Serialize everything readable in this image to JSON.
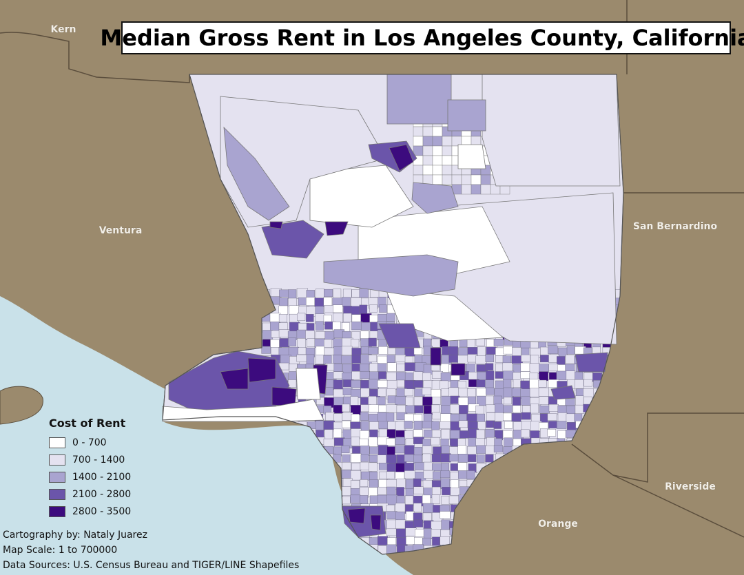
{
  "title": "Median Gross Rent in Los Angeles County, California",
  "colors": {
    "background_land": "#9b8a6d",
    "ocean": "#c9e1e9",
    "boundary": "#5a4d3c"
  },
  "counties": {
    "kern": "Kern",
    "ventura": "Ventura",
    "san_bernardino": "San Bernardino",
    "riverside": "Riverside",
    "orange": "Orange"
  },
  "legend": {
    "title": "Cost of Rent",
    "classes": [
      {
        "label": "0 - 700",
        "color": "#ffffff"
      },
      {
        "label": "700 - 1400",
        "color": "#e4e2f0"
      },
      {
        "label": "1400 - 2100",
        "color": "#a9a4d0"
      },
      {
        "label": "2100 - 2800",
        "color": "#6b55aa"
      },
      {
        "label": "2800 - 3500",
        "color": "#3c0b7e"
      }
    ]
  },
  "credits": {
    "cartography": "Cartography by: Nataly Juarez",
    "scale": "Map Scale: 1 to 700000",
    "sources": "Data Sources: U.S. Census Bureau and TIGER/LINE Shapefiles"
  }
}
